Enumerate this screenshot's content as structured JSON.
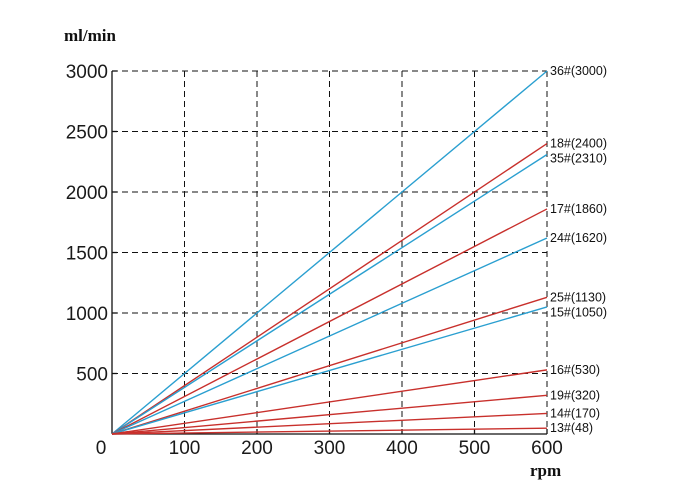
{
  "chart_data": {
    "type": "line",
    "xlabel": "rpm",
    "ylabel": "ml/min",
    "xlim": [
      0,
      600
    ],
    "ylim": [
      0,
      3000
    ],
    "x_ticks": [
      0,
      100,
      200,
      300,
      400,
      500,
      600
    ],
    "y_ticks": [
      500,
      1000,
      1500,
      2000,
      2500,
      3000
    ],
    "grid": true,
    "series": [
      {
        "name": "36#(3000)",
        "x": [
          0,
          600
        ],
        "values": [
          0,
          3000
        ],
        "color": "#2a9fd0"
      },
      {
        "name": "18#(2400)",
        "x": [
          0,
          600
        ],
        "values": [
          0,
          2400
        ],
        "color": "#c8302c"
      },
      {
        "name": "35#(2310)",
        "x": [
          0,
          600
        ],
        "values": [
          0,
          2310
        ],
        "color": "#2a9fd0"
      },
      {
        "name": "17#(1860)",
        "x": [
          0,
          600
        ],
        "values": [
          0,
          1860
        ],
        "color": "#c8302c"
      },
      {
        "name": "24#(1620)",
        "x": [
          0,
          600
        ],
        "values": [
          0,
          1620
        ],
        "color": "#2a9fd0"
      },
      {
        "name": "25#(1130)",
        "x": [
          0,
          600
        ],
        "values": [
          0,
          1130
        ],
        "color": "#c8302c"
      },
      {
        "name": "15#(1050)",
        "x": [
          0,
          600
        ],
        "values": [
          0,
          1050
        ],
        "color": "#2a9fd0"
      },
      {
        "name": "16#(530)",
        "x": [
          0,
          600
        ],
        "values": [
          0,
          530
        ],
        "color": "#c8302c"
      },
      {
        "name": "19#(320)",
        "x": [
          0,
          600
        ],
        "values": [
          0,
          320
        ],
        "color": "#c8302c"
      },
      {
        "name": "14#(170)",
        "x": [
          0,
          600
        ],
        "values": [
          0,
          170
        ],
        "color": "#c8302c"
      },
      {
        "name": "13#(48)",
        "x": [
          0,
          600
        ],
        "values": [
          0,
          48
        ],
        "color": "#c8302c"
      }
    ]
  }
}
